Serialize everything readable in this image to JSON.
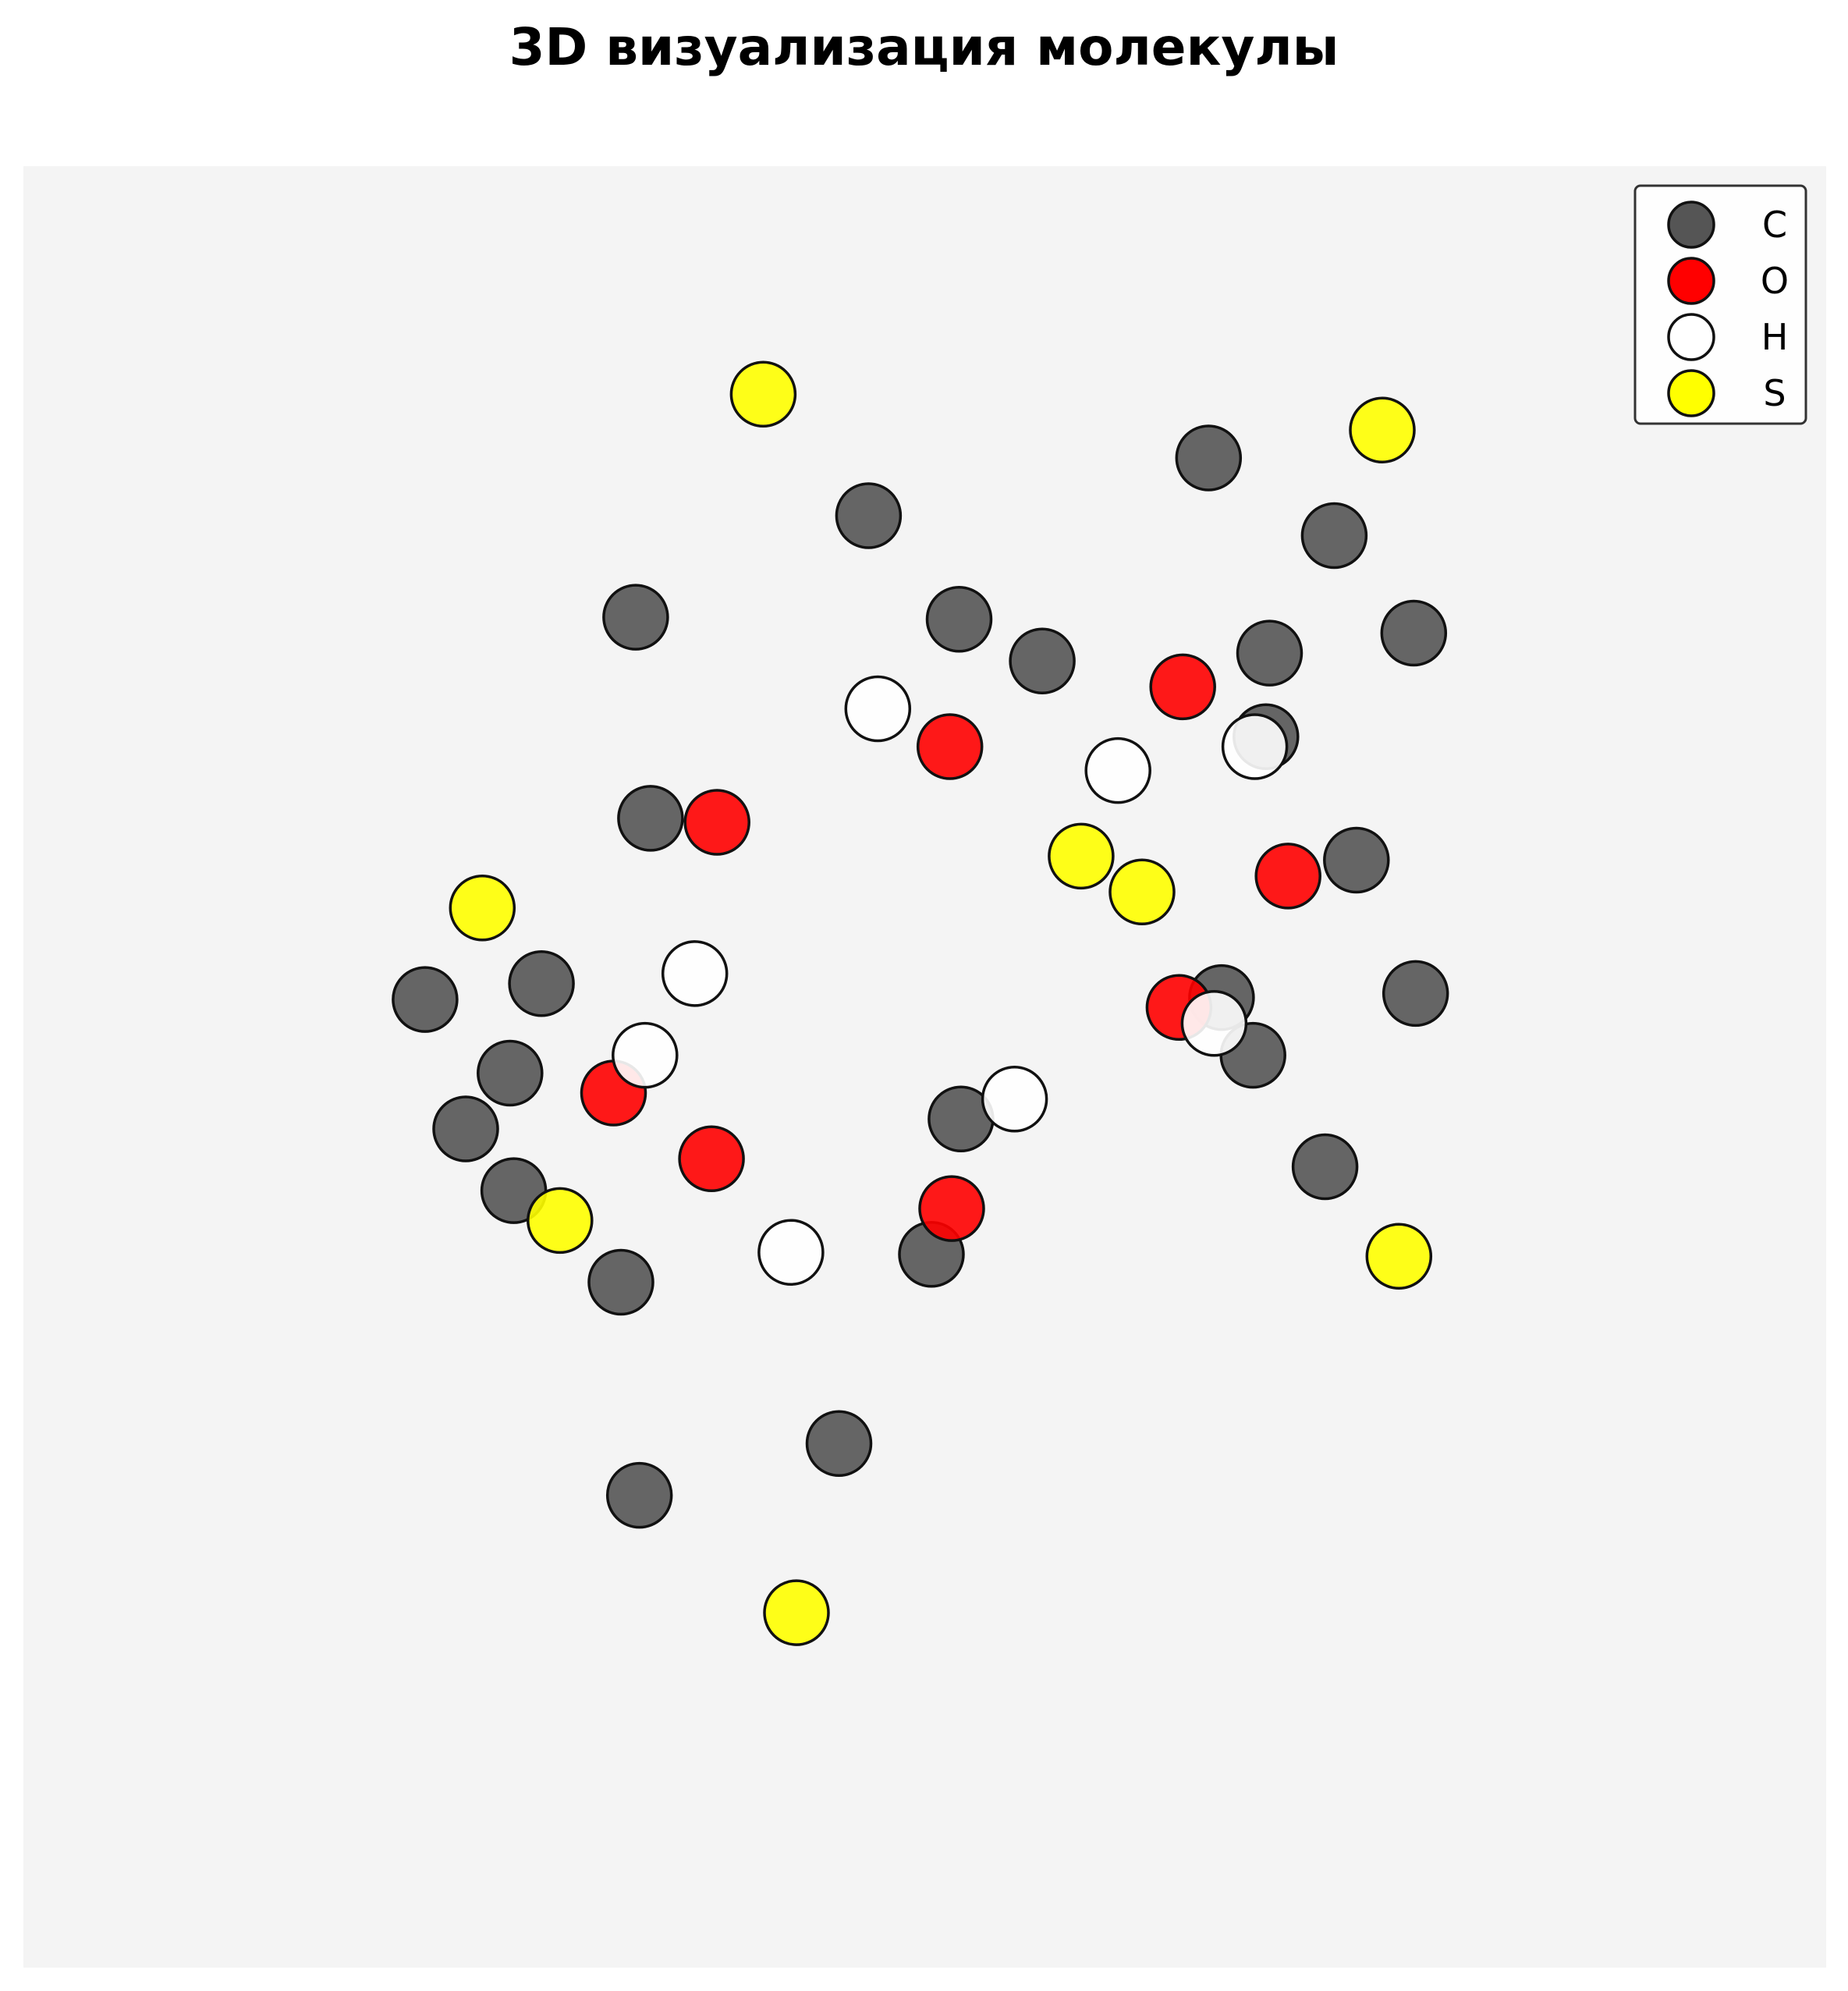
{
  "chart_data": {
    "type": "scatter",
    "title": "3D визуализация молекулы",
    "xlabel": "",
    "ylabel": "",
    "grid": false,
    "axes_visible": false,
    "legend_position": "top-right",
    "background": "#f4f4f4",
    "series": [
      {
        "name": "C",
        "color": "#555555",
        "points": [
          [
            0.654,
            0.23
          ],
          [
            0.344,
            0.31
          ],
          [
            0.519,
            0.311
          ],
          [
            0.564,
            0.332
          ],
          [
            0.722,
            0.269
          ],
          [
            0.765,
            0.318
          ],
          [
            0.687,
            0.328
          ],
          [
            0.685,
            0.37
          ],
          [
            0.352,
            0.411
          ],
          [
            0.293,
            0.494
          ],
          [
            0.23,
            0.502
          ],
          [
            0.276,
            0.539
          ],
          [
            0.252,
            0.567
          ],
          [
            0.278,
            0.598
          ],
          [
            0.336,
            0.644
          ],
          [
            0.52,
            0.562
          ],
          [
            0.661,
            0.501
          ],
          [
            0.678,
            0.53
          ],
          [
            0.734,
            0.432
          ],
          [
            0.766,
            0.499
          ],
          [
            0.717,
            0.586
          ],
          [
            0.47,
            0.259
          ],
          [
            0.504,
            0.63
          ],
          [
            0.454,
            0.725
          ],
          [
            0.346,
            0.751
          ]
        ]
      },
      {
        "name": "O",
        "color": "#ff0000",
        "points": [
          [
            0.64,
            0.345
          ],
          [
            0.514,
            0.375
          ],
          [
            0.388,
            0.413
          ],
          [
            0.697,
            0.44
          ],
          [
            0.638,
            0.506
          ],
          [
            0.332,
            0.549
          ],
          [
            0.385,
            0.582
          ],
          [
            0.515,
            0.607
          ]
        ]
      },
      {
        "name": "H",
        "color": "#ffffff",
        "points": [
          [
            0.475,
            0.356
          ],
          [
            0.605,
            0.387
          ],
          [
            0.679,
            0.375
          ],
          [
            0.376,
            0.489
          ],
          [
            0.349,
            0.53
          ],
          [
            0.549,
            0.552
          ],
          [
            0.428,
            0.629
          ],
          [
            0.657,
            0.514
          ]
        ]
      },
      {
        "name": "S",
        "color": "#ffff00",
        "points": [
          [
            0.413,
            0.198
          ],
          [
            0.748,
            0.216
          ],
          [
            0.585,
            0.43
          ],
          [
            0.618,
            0.448
          ],
          [
            0.261,
            0.456
          ],
          [
            0.303,
            0.613
          ],
          [
            0.757,
            0.631
          ],
          [
            0.431,
            0.81
          ]
        ]
      }
    ],
    "legend": [
      "C",
      "O",
      "H",
      "S"
    ]
  }
}
